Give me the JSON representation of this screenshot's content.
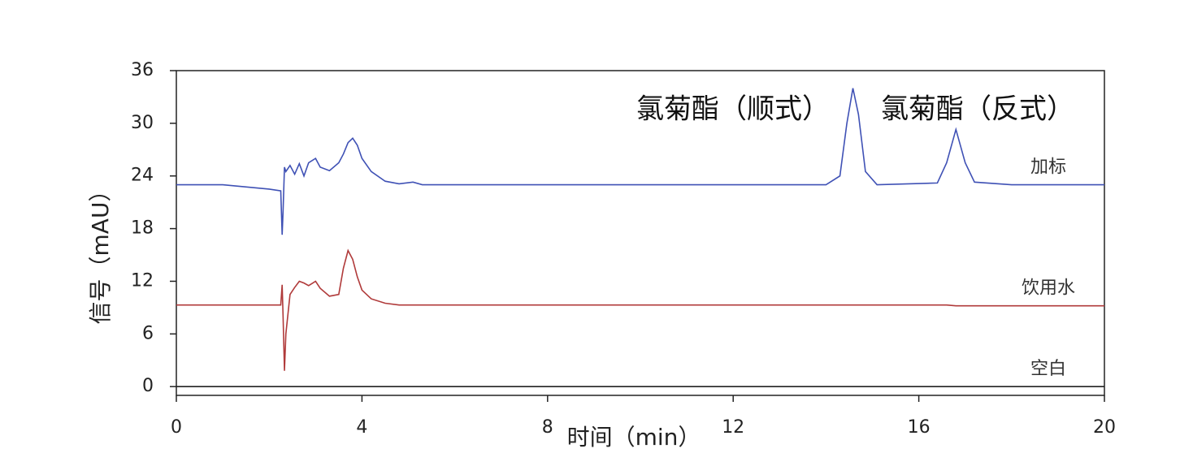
{
  "chart_data": {
    "type": "line",
    "xlabel": "时间（min）",
    "ylabel": "信号（mAU）",
    "annotations": [
      "氯菊酯（顺式）",
      "氯菊酯（反式）"
    ],
    "x": [
      0,
      1,
      2,
      2.25,
      2.28,
      2.3,
      2.33,
      2.36,
      2.45,
      2.55,
      2.65,
      2.75,
      2.85,
      3.0,
      3.1,
      3.3,
      3.5,
      3.6,
      3.7,
      3.8,
      3.9,
      4.0,
      4.2,
      4.5,
      4.8,
      5.1,
      5.3,
      6,
      8,
      10,
      12,
      14,
      14.3,
      14.45,
      14.58,
      14.7,
      14.85,
      15.1,
      16.4,
      16.6,
      16.8,
      17.0,
      17.2,
      18,
      20
    ],
    "series": [
      {
        "name": "加标",
        "color": "#3f51b5",
        "values": [
          23.0,
          23.0,
          22.5,
          22.3,
          17.3,
          20,
          25,
          24.5,
          25.2,
          24.2,
          25.4,
          24,
          25.5,
          26,
          25,
          24.6,
          25.5,
          26.5,
          27.8,
          28.3,
          27.5,
          26,
          24.5,
          23.4,
          23.1,
          23.3,
          23.0,
          23.0,
          23.0,
          23.0,
          23.0,
          23.0,
          24,
          30,
          34.0,
          31,
          24.5,
          23,
          23.2,
          25.5,
          29.3,
          25.5,
          23.3,
          23,
          23
        ]
      },
      {
        "name": "饮用水",
        "color": "#b03a3a",
        "values": [
          9.3,
          9.3,
          9.3,
          9.3,
          11.6,
          8,
          1.8,
          6,
          10.5,
          11.3,
          12,
          11.8,
          11.5,
          12,
          11.2,
          10.3,
          10.5,
          13.5,
          15.5,
          14.5,
          12.5,
          11,
          10,
          9.5,
          9.3,
          9.3,
          9.3,
          9.3,
          9.3,
          9.3,
          9.3,
          9.3,
          9.3,
          9.3,
          9.3,
          9.3,
          9.3,
          9.3,
          9.3,
          9.3,
          9.2,
          9.2,
          9.2,
          9.2,
          9.2
        ]
      },
      {
        "name": "空白",
        "color": "#222222",
        "values": [
          0,
          0,
          0,
          0,
          0,
          0,
          0,
          0,
          0,
          0,
          0,
          0,
          0,
          0,
          0,
          0,
          0,
          0,
          0,
          0,
          0,
          0,
          0,
          0,
          0,
          0,
          0,
          0,
          0,
          0,
          0,
          0,
          0,
          0,
          0,
          0,
          0,
          0,
          0,
          0,
          0,
          0,
          0,
          0,
          0
        ]
      }
    ],
    "xlim": [
      0,
      20
    ],
    "xticks": [
      0,
      4,
      8,
      12,
      16,
      20
    ],
    "ylim": [
      -1,
      36
    ],
    "yticks": [
      0,
      6,
      12,
      18,
      24,
      30,
      36
    ]
  }
}
